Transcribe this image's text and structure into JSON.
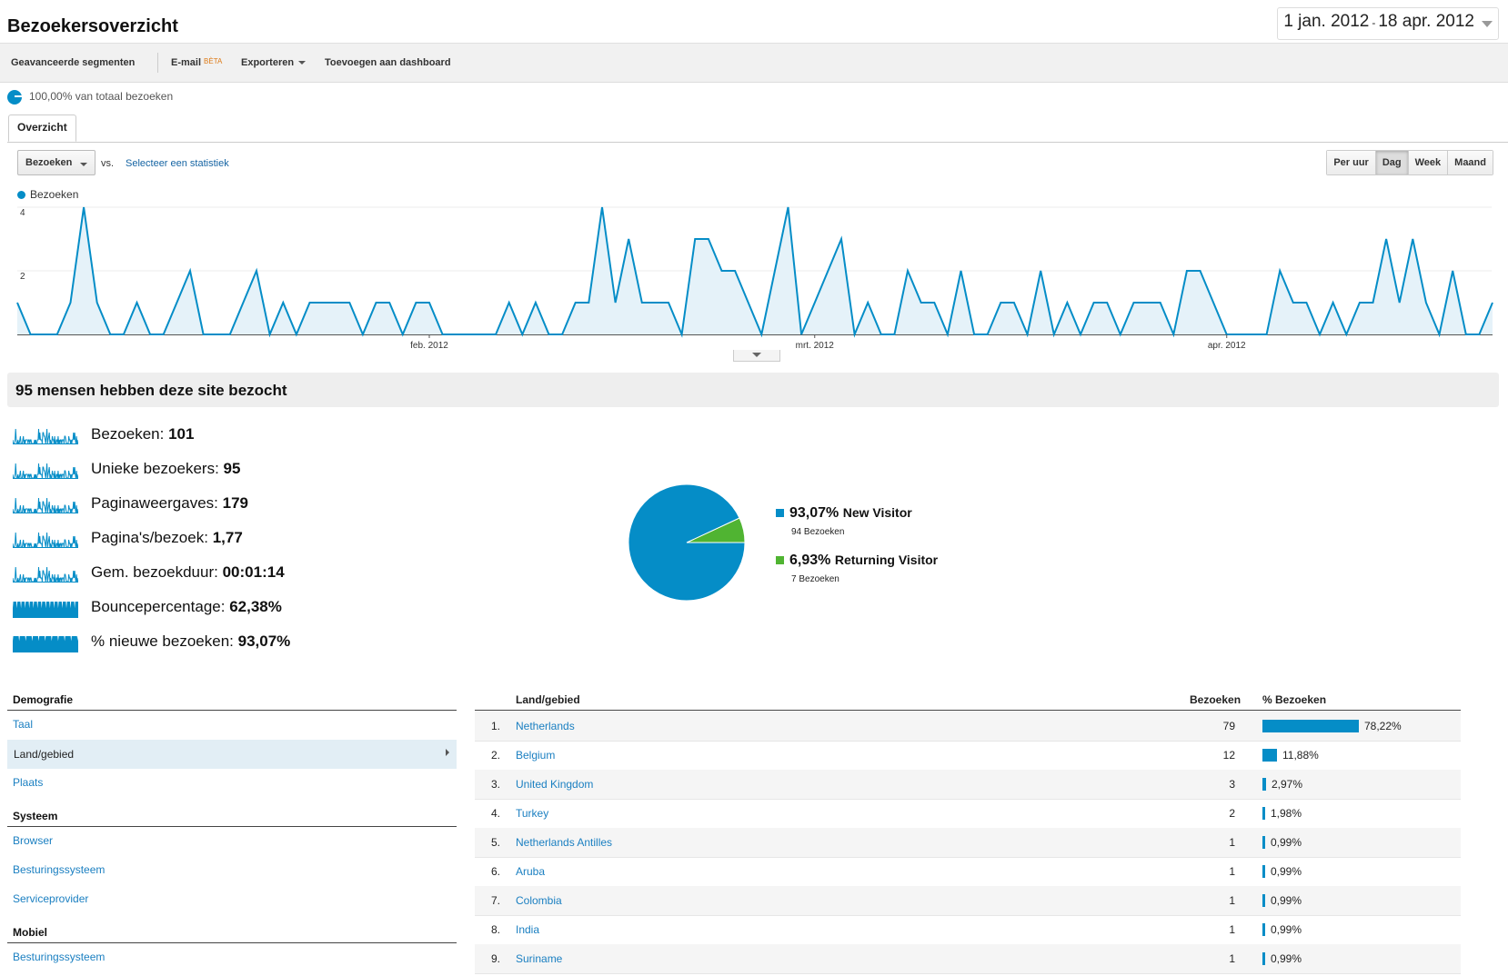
{
  "header": {
    "title": "Bezoekersoverzicht",
    "date_start": "1 jan. 2012",
    "date_sep": "-",
    "date_end": "18 apr. 2012"
  },
  "toolbar": {
    "segments": "Geavanceerde segmenten",
    "email": "E-mail",
    "email_badge": "BÈTA",
    "export": "Exporteren",
    "dashboard": "Toevoegen aan dashboard"
  },
  "segment": {
    "label": "100,00% van totaal bezoeken"
  },
  "tabs": [
    {
      "label": "Overzicht",
      "active": true
    }
  ],
  "controls": {
    "metric": "Bezoeken",
    "vs": "vs.",
    "select_metric": "Selecteer een statistiek",
    "periods": [
      "Per uur",
      "Dag",
      "Week",
      "Maand"
    ],
    "active_period": "Dag"
  },
  "chart_data": {
    "type": "area",
    "series": [
      {
        "name": "Bezoeken",
        "values": [
          1,
          0,
          0,
          0,
          1,
          4,
          1,
          0,
          0,
          1,
          0,
          0,
          1,
          2,
          0,
          0,
          0,
          1,
          2,
          0,
          1,
          0,
          1,
          1,
          1,
          1,
          0,
          1,
          1,
          0,
          1,
          1,
          0,
          0,
          0,
          0,
          0,
          1,
          0,
          1,
          0,
          0,
          1,
          1,
          4,
          1,
          3,
          1,
          1,
          1,
          0,
          3,
          3,
          2,
          2,
          1,
          0,
          2,
          4,
          0,
          1,
          2,
          3,
          0,
          1,
          0,
          0,
          2,
          1,
          1,
          0,
          2,
          0,
          0,
          1,
          1,
          0,
          2,
          0,
          1,
          0,
          1,
          1,
          0,
          1,
          1,
          1,
          0,
          2,
          2,
          1,
          0,
          0,
          0,
          0,
          2,
          1,
          1,
          0,
          1,
          0,
          1,
          1,
          3,
          1,
          3,
          1,
          0,
          2,
          0,
          0,
          1
        ]
      }
    ],
    "x_tick_labels": [
      "feb. 2012",
      "mrt. 2012",
      "apr. 2012"
    ],
    "x_tick_indices": [
      31,
      60,
      91
    ],
    "y_ticks": [
      2,
      4
    ],
    "ylim": [
      0,
      4
    ],
    "color": "#058dc7",
    "grid": true
  },
  "summary": {
    "heading": "95 mensen hebben deze site bezocht",
    "metrics": [
      {
        "label": "Bezoeken:",
        "value": "101"
      },
      {
        "label": "Unieke bezoekers:",
        "value": "95"
      },
      {
        "label": "Paginaweergaves:",
        "value": "179"
      },
      {
        "label": "Pagina's/bezoek:",
        "value": "1,77"
      },
      {
        "label": "Gem. bezoekduur:",
        "value": "00:01:14"
      },
      {
        "label": "Bouncepercentage:",
        "value": "62,38%"
      },
      {
        "label": "% nieuwe bezoeken:",
        "value": "93,07%"
      }
    ]
  },
  "visitor_pie": {
    "slices": [
      {
        "pct": "93,07%",
        "label": "New Visitor",
        "sub": "94 Bezoeken",
        "value": 93.07,
        "color": "#058dc7"
      },
      {
        "pct": "6,93%",
        "label": "Returning Visitor",
        "sub": "7 Bezoeken",
        "value": 6.93,
        "color": "#50b432"
      }
    ]
  },
  "sidebar": {
    "sections": [
      {
        "title": "Demografie",
        "items": [
          "Taal",
          "Land/gebied",
          "Plaats"
        ]
      },
      {
        "title": "Systeem",
        "items": [
          "Browser",
          "Besturingssysteem",
          "Serviceprovider"
        ]
      },
      {
        "title": "Mobiel",
        "items": [
          "Besturingssysteem"
        ]
      }
    ],
    "active": "Land/gebied"
  },
  "table": {
    "headers": {
      "land": "Land/gebied",
      "visits": "Bezoeken",
      "pct": "% Bezoeken"
    },
    "rows": [
      {
        "n": "1.",
        "land": "Netherlands",
        "visits": "79",
        "pct": "78,22%",
        "share": 78.22
      },
      {
        "n": "2.",
        "land": "Belgium",
        "visits": "12",
        "pct": "11,88%",
        "share": 11.88
      },
      {
        "n": "3.",
        "land": "United Kingdom",
        "visits": "3",
        "pct": "2,97%",
        "share": 2.97
      },
      {
        "n": "4.",
        "land": "Turkey",
        "visits": "2",
        "pct": "1,98%",
        "share": 1.98
      },
      {
        "n": "5.",
        "land": "Netherlands Antilles",
        "visits": "1",
        "pct": "0,99%",
        "share": 0.99
      },
      {
        "n": "6.",
        "land": "Aruba",
        "visits": "1",
        "pct": "0,99%",
        "share": 0.99
      },
      {
        "n": "7.",
        "land": "Colombia",
        "visits": "1",
        "pct": "0,99%",
        "share": 0.99
      },
      {
        "n": "8.",
        "land": "India",
        "visits": "1",
        "pct": "0,99%",
        "share": 0.99
      },
      {
        "n": "9.",
        "land": "Suriname",
        "visits": "1",
        "pct": "0,99%",
        "share": 0.99
      }
    ]
  }
}
